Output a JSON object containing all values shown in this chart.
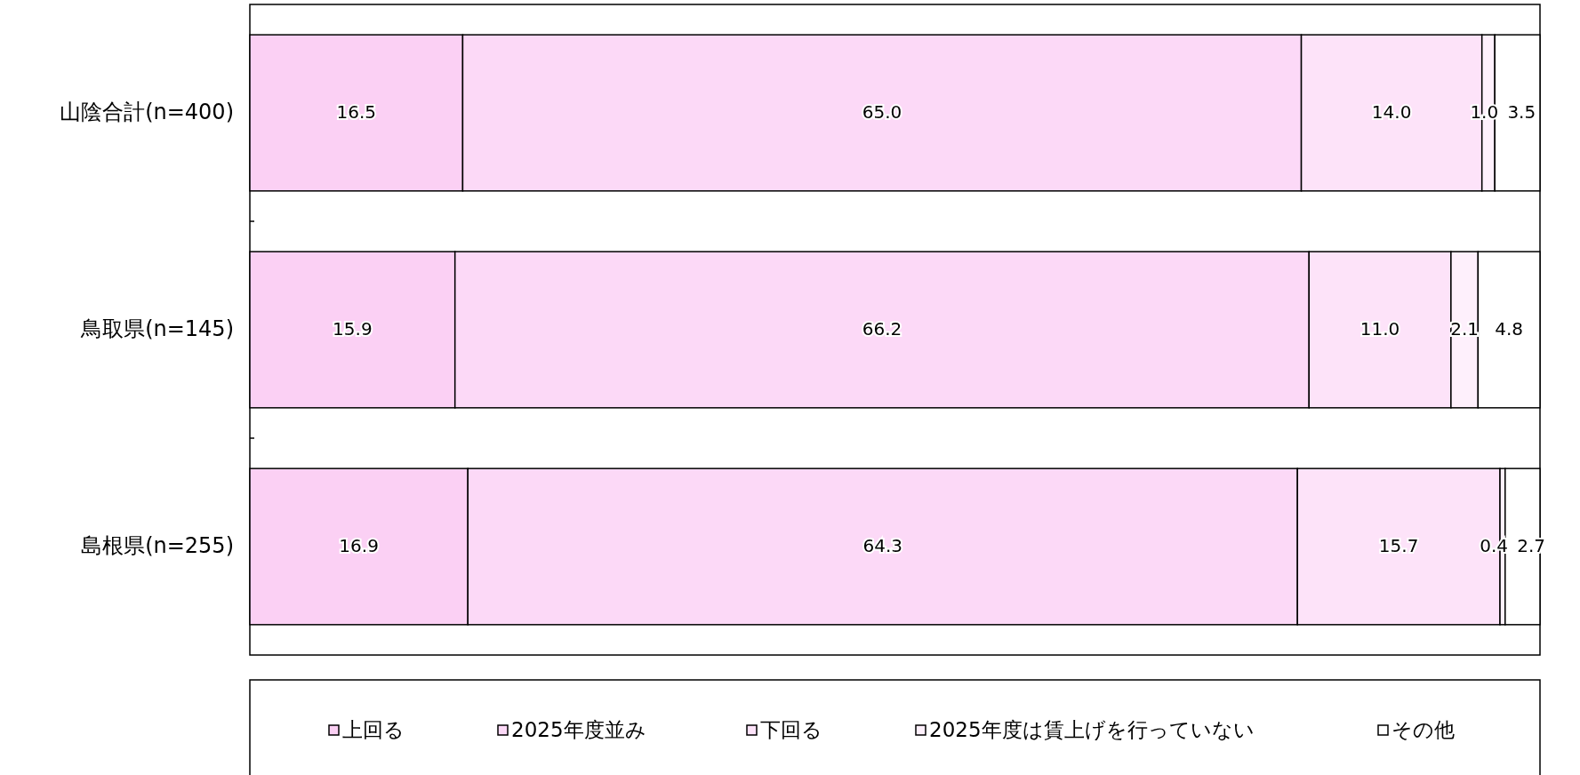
{
  "chart_data": {
    "type": "bar",
    "orientation": "horizontal",
    "stacked": true,
    "categories": [
      "山陰合計(n=400)",
      "鳥取県(n=145)",
      "島根県(n=255)"
    ],
    "series": [
      {
        "name": "上回る",
        "color": "#fbd0f4",
        "values": [
          16.5,
          15.9,
          16.9
        ],
        "value_labels": [
          "16.5",
          "15.9",
          "16.9"
        ]
      },
      {
        "name": "2025年度並み",
        "color": "#fcd9f7",
        "values": [
          65.0,
          66.2,
          64.3
        ],
        "value_labels": [
          "65.0",
          "66.2",
          "64.3"
        ]
      },
      {
        "name": "下回る",
        "color": "#fde3f9",
        "values": [
          14.0,
          11.0,
          15.7
        ],
        "value_labels": [
          "14.0",
          "11.0",
          "15.7"
        ]
      },
      {
        "name": "2025年度は賃上げを行っていない",
        "color": "#fef0fc",
        "values": [
          1.0,
          2.1,
          0.4
        ],
        "value_labels": [
          "1.0",
          "2.1",
          "0.4"
        ]
      },
      {
        "name": "その他",
        "color": "#ffffff",
        "values": [
          3.5,
          4.8,
          2.7
        ],
        "value_labels": [
          "3.5",
          "4.8",
          "2.7"
        ]
      }
    ],
    "xlim": [
      0,
      100
    ],
    "tick_labels": "y",
    "legend": "bottom",
    "grid": false
  }
}
